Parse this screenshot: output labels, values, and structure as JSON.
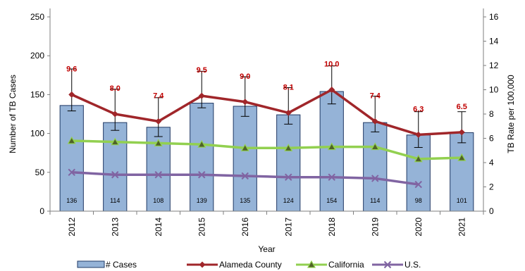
{
  "chart_data": {
    "type": "bar",
    "title": "",
    "xlabel": "Year",
    "ylabel": "Number of TB Cases",
    "y2label": "TB Rate per 100,000",
    "ylim": [
      0,
      250
    ],
    "y2lim": [
      0,
      16
    ],
    "yticks": [
      0,
      50,
      100,
      150,
      200,
      250
    ],
    "y2ticks": [
      0,
      2,
      4,
      6,
      8,
      10,
      12,
      14,
      16
    ],
    "categories": [
      "2012",
      "2013",
      "2014",
      "2015",
      "2016",
      "2017",
      "2018",
      "2019",
      "2020",
      "2021"
    ],
    "grid": false,
    "legend_position": "bottom",
    "series": [
      {
        "name": "# Cases",
        "type": "bar",
        "axis": "left",
        "color": "#95b3d7",
        "values": [
          136,
          114,
          108,
          139,
          135,
          124,
          154,
          114,
          98,
          101
        ],
        "labels": [
          "136",
          "114",
          "108",
          "139",
          "135",
          "124",
          "154",
          "114",
          "98",
          "101"
        ],
        "error_low": [
          129,
          104,
          96,
          133,
          122,
          112,
          138,
          102,
          82,
          88
        ],
        "error_high": [
          183,
          157,
          146,
          180,
          173,
          159,
          187,
          148,
          128,
          128
        ]
      },
      {
        "name": "Alameda County",
        "type": "line",
        "axis": "right",
        "color": "#a0262a",
        "marker": "diamond",
        "values": [
          9.6,
          8.0,
          7.4,
          9.5,
          9.0,
          8.1,
          10.0,
          7.4,
          6.3,
          6.5
        ],
        "labels": [
          "9.6",
          "8.0",
          "7.4",
          "9.5",
          "9.0",
          "8.1",
          "10.0",
          "7.4",
          "6.3",
          "6.5"
        ]
      },
      {
        "name": "California",
        "type": "line",
        "axis": "right",
        "color": "#92d050",
        "marker": "triangle",
        "values": [
          5.8,
          5.7,
          5.6,
          5.5,
          5.2,
          5.2,
          5.3,
          5.3,
          4.3,
          4.4
        ]
      },
      {
        "name": "U.S.",
        "type": "line",
        "axis": "right",
        "color": "#8064a2",
        "marker": "x",
        "values": [
          3.2,
          3.0,
          3.0,
          3.0,
          2.9,
          2.8,
          2.8,
          2.7,
          2.2,
          null
        ]
      }
    ]
  }
}
